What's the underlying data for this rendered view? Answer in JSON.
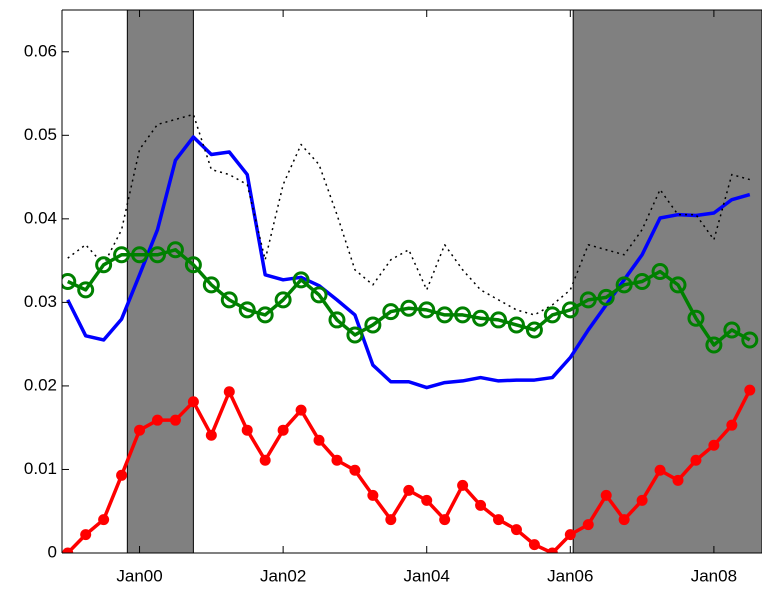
{
  "chart_data": {
    "type": "line",
    "x": [
      1999.0,
      1999.25,
      1999.5,
      1999.75,
      2000.0,
      2000.25,
      2000.5,
      2000.75,
      2001.0,
      2001.25,
      2001.5,
      2001.75,
      2002.0,
      2002.25,
      2002.5,
      2002.75,
      2003.0,
      2003.25,
      2003.5,
      2003.75,
      2004.0,
      2004.25,
      2004.5,
      2004.75,
      2005.0,
      2005.25,
      2005.5,
      2005.75,
      2006.0,
      2006.25,
      2006.5,
      2006.75,
      2007.0,
      2007.25,
      2007.5,
      2007.75,
      2008.0,
      2008.25,
      2008.5
    ],
    "series": [
      {
        "color": "#0000ff",
        "line_style": "solid",
        "marker": "none",
        "values": [
          0.0303,
          0.026,
          0.0255,
          0.028,
          0.0333,
          0.0387,
          0.047,
          0.0498,
          0.0477,
          0.048,
          0.0453,
          0.0333,
          0.0327,
          0.033,
          0.032,
          0.0303,
          0.0285,
          0.0225,
          0.0205,
          0.0205,
          0.0198,
          0.0204,
          0.0206,
          0.021,
          0.0206,
          0.0207,
          0.0207,
          0.021,
          0.0234,
          0.0267,
          0.0297,
          0.0327,
          0.0357,
          0.0401,
          0.0405,
          0.0404,
          0.0407,
          0.0423,
          0.0429
        ]
      },
      {
        "color": "#000000",
        "line_style": "dotted",
        "marker": "none",
        "values": [
          0.0353,
          0.0369,
          0.0345,
          0.0387,
          0.0483,
          0.0513,
          0.0519,
          0.0525,
          0.0459,
          0.0453,
          0.0441,
          0.0351,
          0.0441,
          0.0489,
          0.0465,
          0.0405,
          0.0339,
          0.0321,
          0.0351,
          0.0363,
          0.0315,
          0.0369,
          0.0339,
          0.0315,
          0.0303,
          0.0291,
          0.0285,
          0.0297,
          0.0315,
          0.0369,
          0.0363,
          0.0357,
          0.0387,
          0.0435,
          0.0405,
          0.0405,
          0.0375,
          0.0453,
          0.0447
        ]
      },
      {
        "color": "#008000",
        "line_style": "solid",
        "marker": "circle-open",
        "values": [
          0.0325,
          0.0315,
          0.0345,
          0.0357,
          0.0357,
          0.0357,
          0.0363,
          0.0345,
          0.0321,
          0.0303,
          0.0291,
          0.0285,
          0.0303,
          0.0327,
          0.0309,
          0.0279,
          0.0261,
          0.0273,
          0.0289,
          0.0293,
          0.0291,
          0.0285,
          0.0285,
          0.0281,
          0.0279,
          0.0273,
          0.0267,
          0.0285,
          0.0291,
          0.0303,
          0.0306,
          0.0321,
          0.0325,
          0.0337,
          0.0321,
          0.0281,
          0.0249,
          0.0267,
          0.0255
        ]
      },
      {
        "color": "#ff0000",
        "line_style": "solid",
        "marker": "dot",
        "values": [
          0.0,
          0.0022,
          0.004,
          0.0093,
          0.0147,
          0.0159,
          0.0159,
          0.0181,
          0.0141,
          0.0193,
          0.0147,
          0.0111,
          0.0147,
          0.0171,
          0.0135,
          0.0111,
          0.0099,
          0.0069,
          0.004,
          0.0075,
          0.0063,
          0.004,
          0.0081,
          0.0057,
          0.004,
          0.0028,
          0.001,
          0.0,
          0.0022,
          0.0034,
          0.0069,
          0.004,
          0.0063,
          0.0099,
          0.0087,
          0.0111,
          0.0129,
          0.0153,
          0.0195
        ]
      }
    ],
    "shaded_regions": [
      {
        "start": 1999.83,
        "end": 2000.75,
        "color": "#808080"
      },
      {
        "start": 2006.04,
        "end": 2008.67,
        "color": "#808080"
      }
    ],
    "xlim": [
      1998.92,
      2008.67
    ],
    "xticks": [
      {
        "value": 2000,
        "label": "Jan00"
      },
      {
        "value": 2002,
        "label": "Jan02"
      },
      {
        "value": 2004,
        "label": "Jan04"
      },
      {
        "value": 2006,
        "label": "Jan06"
      },
      {
        "value": 2008,
        "label": "Jan08"
      }
    ],
    "ylim": [
      0,
      0.065
    ],
    "yticks": [
      0,
      0.01,
      0.02,
      0.03,
      0.04,
      0.05,
      0.06
    ],
    "grid": false
  }
}
